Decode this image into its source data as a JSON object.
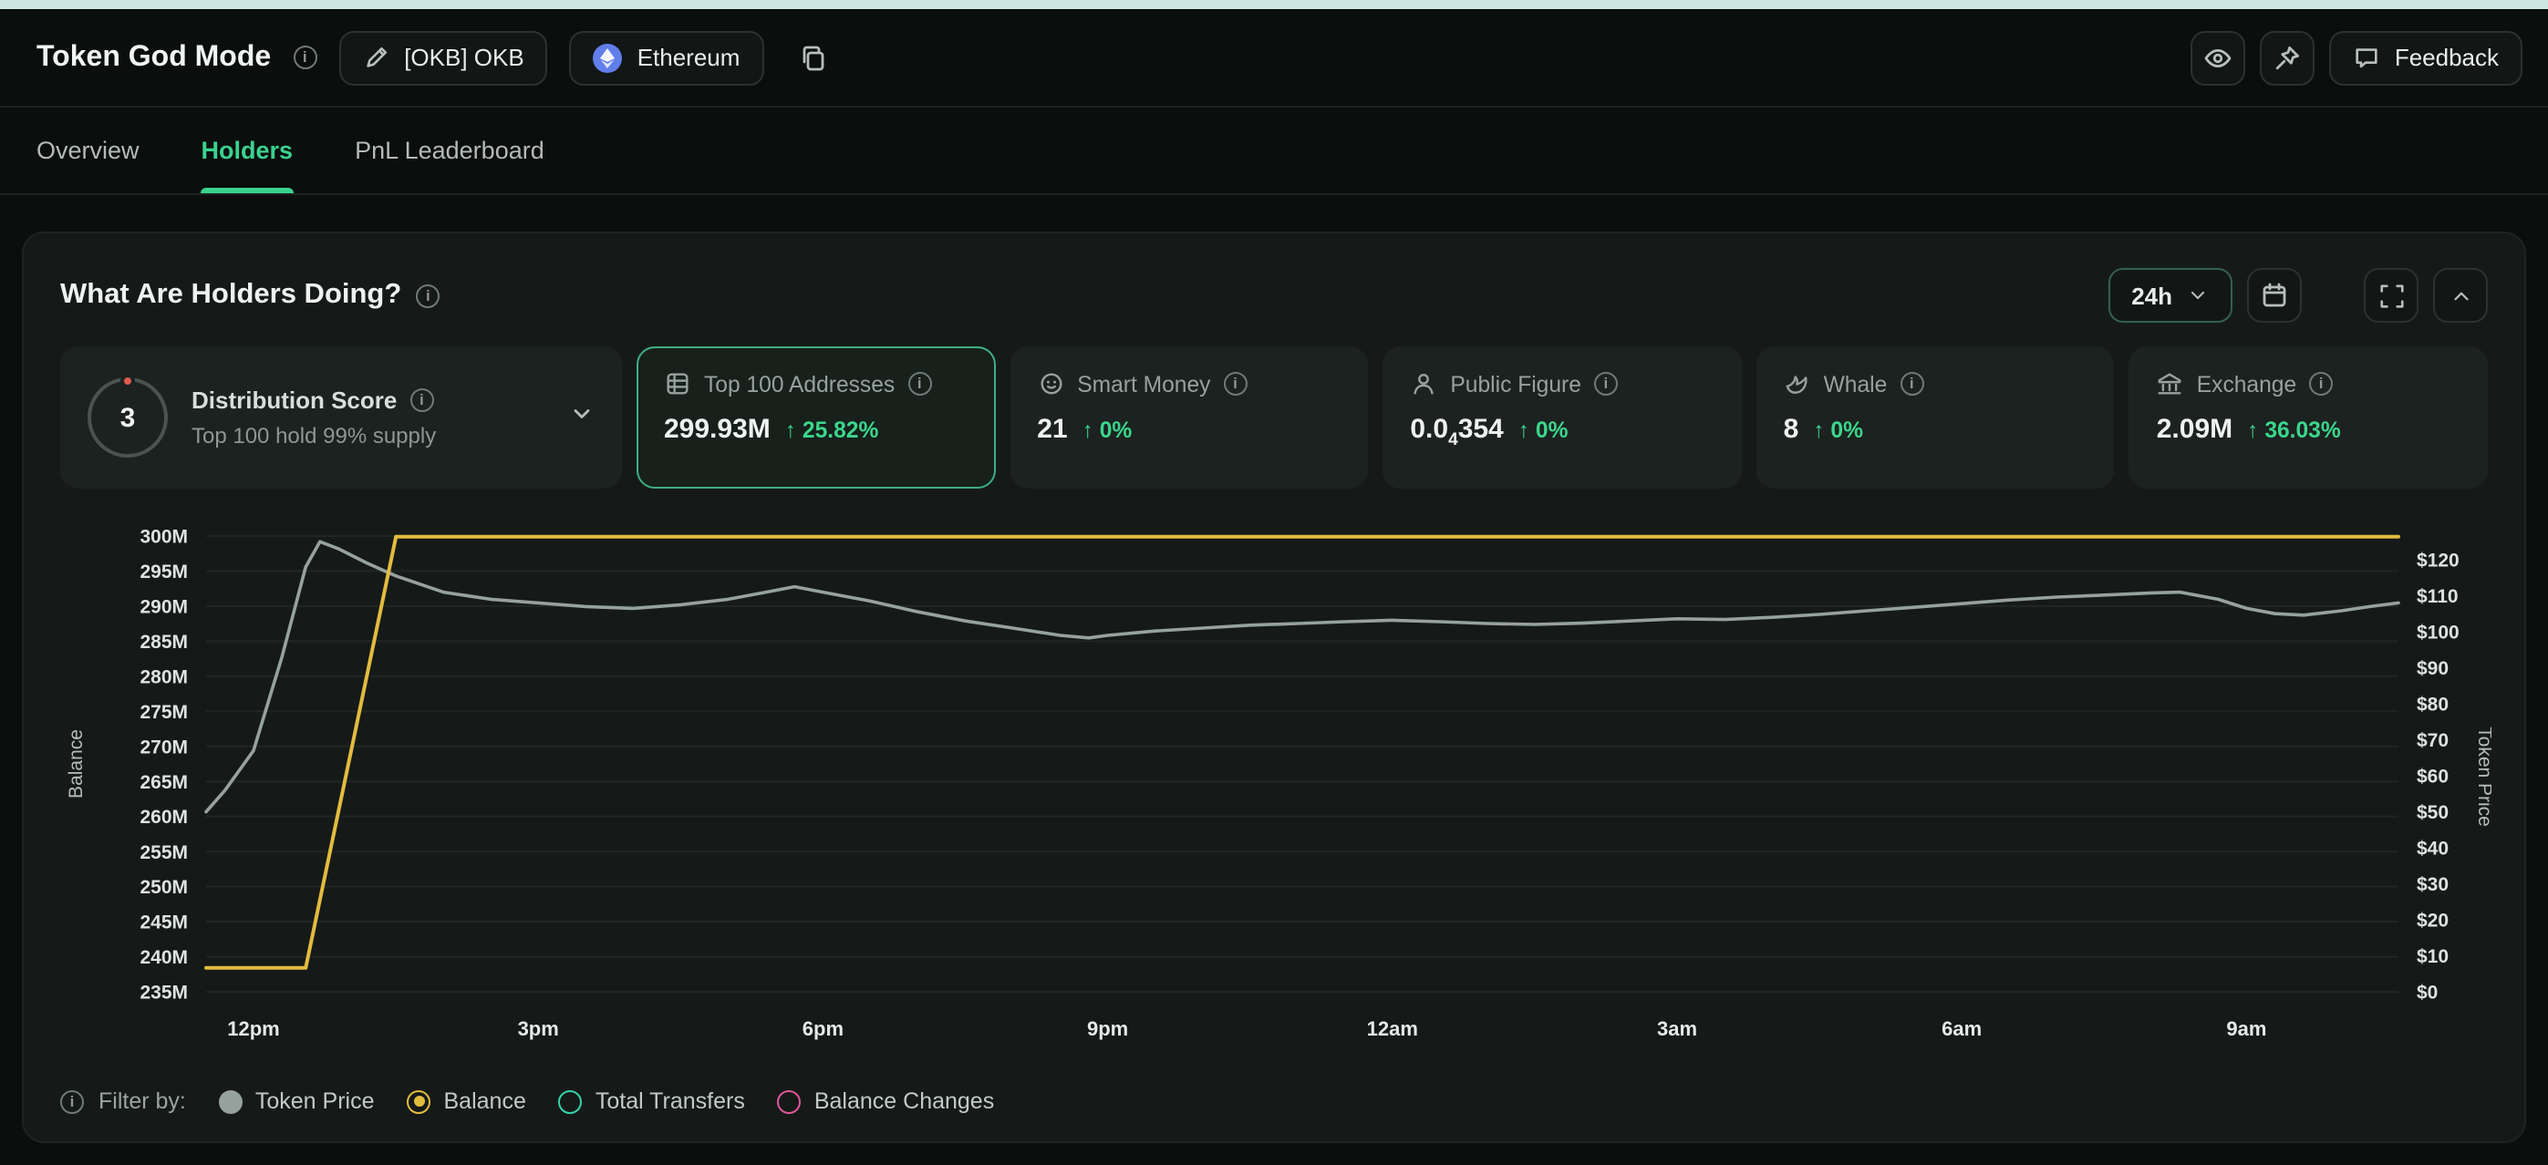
{
  "header": {
    "title": "Token God Mode",
    "token_button_label": "[OKB] OKB",
    "chain_button_label": "Ethereum",
    "feedback_label": "Feedback"
  },
  "tabs": [
    {
      "label": "Overview",
      "active": false
    },
    {
      "label": "Holders",
      "active": true
    },
    {
      "label": "PnL Leaderboard",
      "active": false
    }
  ],
  "panel": {
    "title": "What Are Holders Doing?",
    "timeframe": "24h"
  },
  "stat_cards": {
    "distribution": {
      "score": "3",
      "title": "Distribution Score",
      "subtitle": "Top 100 hold 99% supply"
    },
    "cards": [
      {
        "id": "top-100-addresses",
        "title": "Top 100 Addresses",
        "value": "299.93M",
        "change": "25.82%",
        "selected": true
      },
      {
        "id": "smart-money",
        "title": "Smart Money",
        "value": "21",
        "change": "0%",
        "selected": false
      },
      {
        "id": "public-figure",
        "title": "Public Figure",
        "value_prefix": "0.0",
        "value_sub": "4",
        "value_suffix": "354",
        "change": "0%",
        "selected": false
      },
      {
        "id": "whale",
        "title": "Whale",
        "value": "8",
        "change": "0%",
        "selected": false
      },
      {
        "id": "exchange",
        "title": "Exchange",
        "value": "2.09M",
        "change": "36.03%",
        "selected": false
      }
    ]
  },
  "chart_data": {
    "type": "line",
    "title": "What Are Holders Doing? (24h)",
    "x_axis": {
      "ticks": [
        "12pm",
        "3pm",
        "6pm",
        "9pm",
        "12am",
        "3am",
        "6am",
        "9am"
      ],
      "tick_hours": [
        0,
        3,
        6,
        9,
        12,
        15,
        18,
        21
      ],
      "hour_range": [
        -0.5,
        22.6
      ]
    },
    "y_left": {
      "label": "Balance",
      "tick_labels": [
        "300M",
        "295M",
        "290M",
        "285M",
        "280M",
        "275M",
        "270M",
        "265M",
        "260M",
        "255M",
        "250M",
        "245M",
        "240M",
        "235M"
      ],
      "tick_values": [
        300,
        295,
        290,
        285,
        280,
        275,
        270,
        265,
        260,
        255,
        250,
        245,
        240,
        235
      ],
      "min": 235,
      "max": 300,
      "unit": "M"
    },
    "y_right": {
      "label": "Token Price",
      "tick_labels": [
        "$120",
        "$110",
        "$100",
        "$90",
        "$80",
        "$70",
        "$60",
        "$50",
        "$40",
        "$30",
        "$20",
        "$10",
        "$0"
      ],
      "tick_values": [
        120,
        110,
        100,
        90,
        80,
        70,
        60,
        50,
        40,
        30,
        20,
        10,
        0
      ],
      "min": 0,
      "max": 120,
      "unit": "$"
    },
    "grid": "horizontal",
    "series": [
      {
        "name": "Token Price",
        "axis": "right",
        "color": "#97a19e",
        "points": [
          [
            -0.5,
            50
          ],
          [
            -0.3,
            56
          ],
          [
            0,
            67
          ],
          [
            0.3,
            93
          ],
          [
            0.55,
            118
          ],
          [
            0.7,
            125
          ],
          [
            0.9,
            123
          ],
          [
            1.2,
            119
          ],
          [
            1.5,
            115.5
          ],
          [
            2,
            111
          ],
          [
            2.5,
            109
          ],
          [
            3,
            108
          ],
          [
            3.5,
            107
          ],
          [
            4,
            106.5
          ],
          [
            4.5,
            107.5
          ],
          [
            5,
            109
          ],
          [
            5.4,
            111
          ],
          [
            5.7,
            112.5
          ],
          [
            6,
            111
          ],
          [
            6.5,
            108.5
          ],
          [
            7,
            105.5
          ],
          [
            7.5,
            103
          ],
          [
            8,
            101
          ],
          [
            8.5,
            99
          ],
          [
            8.8,
            98.3
          ],
          [
            9,
            99
          ],
          [
            9.5,
            100.2
          ],
          [
            10,
            101
          ],
          [
            10.5,
            101.8
          ],
          [
            11,
            102.3
          ],
          [
            11.5,
            102.8
          ],
          [
            12,
            103.2
          ],
          [
            12.5,
            102.8
          ],
          [
            13,
            102.3
          ],
          [
            13.5,
            102
          ],
          [
            14,
            102.4
          ],
          [
            14.5,
            103
          ],
          [
            15,
            103.6
          ],
          [
            15.5,
            103.4
          ],
          [
            16,
            104
          ],
          [
            16.5,
            104.8
          ],
          [
            17,
            105.8
          ],
          [
            17.5,
            106.8
          ],
          [
            18,
            107.8
          ],
          [
            18.5,
            108.8
          ],
          [
            19,
            109.6
          ],
          [
            19.5,
            110.2
          ],
          [
            20,
            110.8
          ],
          [
            20.3,
            111
          ],
          [
            20.7,
            109
          ],
          [
            21,
            106.5
          ],
          [
            21.3,
            105
          ],
          [
            21.6,
            104.6
          ],
          [
            22,
            105.8
          ],
          [
            22.3,
            107
          ],
          [
            22.6,
            108
          ]
        ]
      },
      {
        "name": "Balance",
        "axis": "left",
        "color": "#e3bb3f",
        "points": [
          [
            -0.5,
            238.4
          ],
          [
            0.55,
            238.4
          ],
          [
            1.5,
            299.9
          ],
          [
            22.6,
            299.9
          ]
        ]
      }
    ]
  },
  "legend": {
    "filter_label": "Filter by:",
    "items": [
      {
        "label": "Token Price",
        "color": "#97a19e",
        "state": "filled"
      },
      {
        "label": "Balance",
        "color": "#e3bb3f",
        "state": "selected"
      },
      {
        "label": "Total Transfers",
        "color": "#35d4ab",
        "state": "outline"
      },
      {
        "label": "Balance Changes",
        "color": "#e0559a",
        "state": "outline"
      }
    ]
  }
}
